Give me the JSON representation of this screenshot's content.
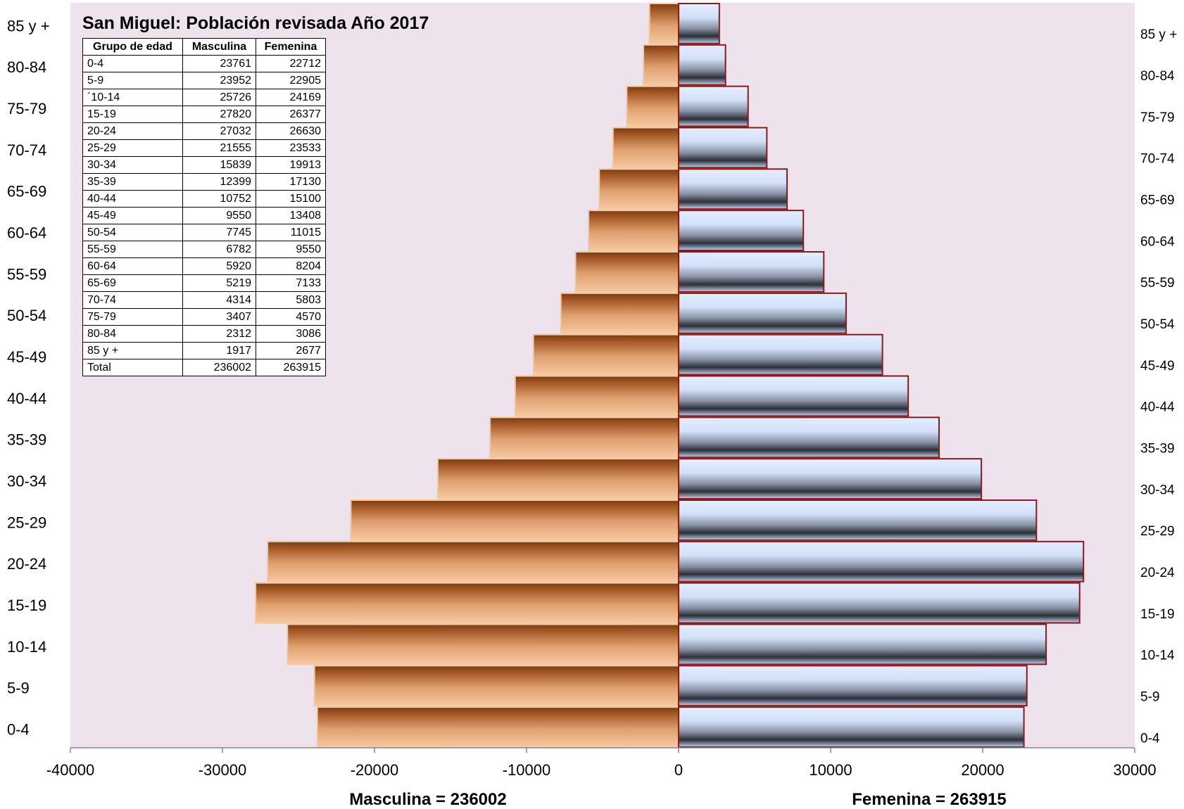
{
  "chart_data": {
    "type": "bar",
    "orientation": "horizontal",
    "title": "San Miguel: Población revisada Año 2017",
    "categories": [
      "0-4",
      "5-9",
      "10-14",
      "15-19",
      "20-24",
      "25-29",
      "30-34",
      "35-39",
      "40-44",
      "45-49",
      "50-54",
      "55-59",
      "60-64",
      "65-69",
      "70-74",
      "75-79",
      "80-84",
      "85 y +"
    ],
    "series": [
      {
        "name": "Masculina",
        "values": [
          -23761,
          -23952,
          -25726,
          -27820,
          -27032,
          -21555,
          -15839,
          -12399,
          -10752,
          -9550,
          -7745,
          -6782,
          -5920,
          -5219,
          -4314,
          -3407,
          -2312,
          -1917
        ]
      },
      {
        "name": "Femenina",
        "values": [
          22712,
          22905,
          24169,
          26377,
          26630,
          23533,
          19913,
          17130,
          15100,
          13408,
          11015,
          9550,
          8204,
          7133,
          5803,
          4570,
          3086,
          2677
        ]
      }
    ],
    "xlim": [
      -40000,
      30000
    ],
    "xticks": [
      "-40000",
      "-30000",
      "-20000",
      "-10000",
      "0",
      "10000",
      "20000",
      "30000"
    ],
    "xlabel_left": "Masculina = 236002",
    "xlabel_right": "Femenina = 263915",
    "legend": "none",
    "grid": false,
    "colors": {
      "plot_bg": "#EEE2EC",
      "male": "#C8773A",
      "female": "#D6E4FA",
      "female_border": "#8B1A1A",
      "male_border": "#F3C9A1"
    },
    "table": {
      "headers": [
        "Grupo de edad",
        "Masculina",
        "Femenina"
      ],
      "rows": [
        [
          "0-4",
          "23761",
          "22712"
        ],
        [
          "5-9",
          "23952",
          "22905"
        ],
        [
          "´10-14",
          "25726",
          "24169"
        ],
        [
          "15-19",
          "27820",
          "26377"
        ],
        [
          "20-24",
          "27032",
          "26630"
        ],
        [
          "25-29",
          "21555",
          "23533"
        ],
        [
          "30-34",
          "15839",
          "19913"
        ],
        [
          "35-39",
          "12399",
          "17130"
        ],
        [
          "40-44",
          "10752",
          "15100"
        ],
        [
          "45-49",
          "9550",
          "13408"
        ],
        [
          "50-54",
          "7745",
          "11015"
        ],
        [
          "55-59",
          "6782",
          "9550"
        ],
        [
          "60-64",
          "5920",
          "8204"
        ],
        [
          "65-69",
          "5219",
          "7133"
        ],
        [
          "70-74",
          "4314",
          "5803"
        ],
        [
          "75-79",
          "3407",
          "4570"
        ],
        [
          "80-84",
          "2312",
          "3086"
        ],
        [
          "85 y +",
          "1917",
          "2677"
        ],
        [
          "Total",
          "236002",
          "263915"
        ]
      ]
    }
  }
}
